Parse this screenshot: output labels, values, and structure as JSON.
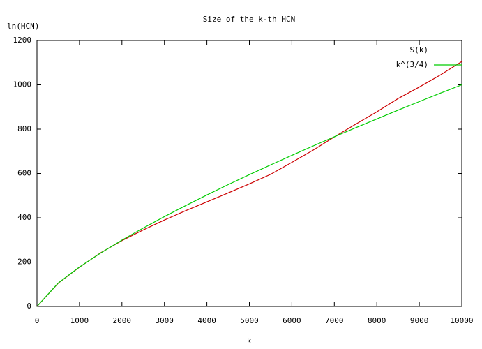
{
  "chart_data": {
    "type": "line",
    "title": "Size of the k-th HCN",
    "x_label": "k",
    "y_label": "ln(HCN)",
    "x": [
      0,
      500,
      1000,
      1500,
      2000,
      2500,
      3000,
      3500,
      4000,
      4500,
      5000,
      5500,
      6000,
      6500,
      7000,
      7500,
      8000,
      8500,
      9000,
      9500,
      10000
    ],
    "series": [
      {
        "name": "S(k)",
        "color": "#cc0000",
        "style": "dots",
        "values": [
          0,
          105,
          177,
          242,
          297,
          345,
          390,
          432,
          472,
          512,
          553,
          596,
          650,
          705,
          765,
          822,
          878,
          938,
          990,
          1045,
          1105
        ]
      },
      {
        "name": "k^(3/4)",
        "color": "#00cc00",
        "style": "lines",
        "values": [
          0,
          105.7,
          177.8,
          241.0,
          299.1,
          353.6,
          405.4,
          455.0,
          503.0,
          549.6,
          594.6,
          638.6,
          681.8,
          724.0,
          765.5,
          806.2,
          846.0,
          885.6,
          924.4,
          962.8,
          1000
        ]
      }
    ],
    "xlim": [
      0,
      10000
    ],
    "xticks": [
      0,
      1000,
      2000,
      3000,
      4000,
      5000,
      6000,
      7000,
      8000,
      9000,
      10000
    ],
    "ylim": [
      0,
      1200
    ],
    "yticks": [
      0,
      200,
      400,
      600,
      800,
      1000,
      1200
    ],
    "legend": "top-right"
  }
}
